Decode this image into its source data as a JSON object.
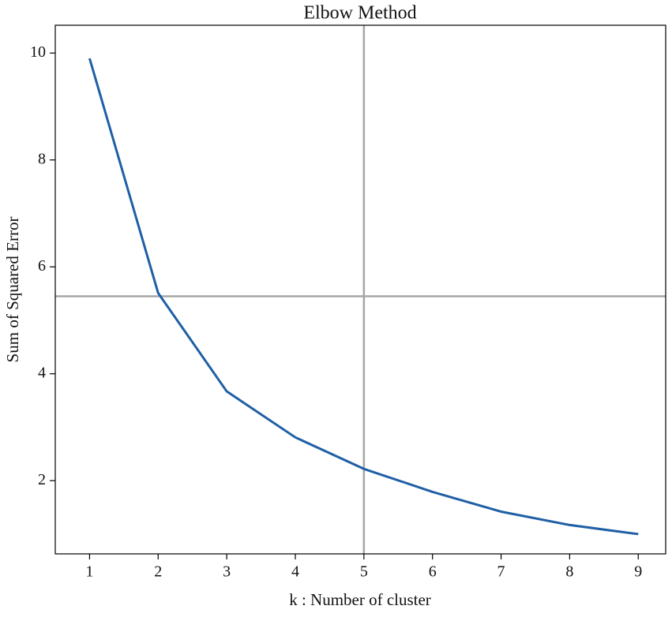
{
  "chart_data": {
    "type": "line",
    "title": "Elbow Method",
    "x_label": "k : Number of cluster",
    "y_label": "Sum of Squared Error",
    "x": [
      1,
      2,
      3,
      4,
      5,
      6,
      7,
      8,
      9
    ],
    "series": [
      {
        "color": "#1f5fa5",
        "values": [
          9.9,
          5.51,
          3.67,
          2.81,
          2.22,
          1.79,
          1.42,
          1.17,
          1.0
        ]
      }
    ],
    "xlim": [
      0.5,
      9.4
    ],
    "ylim": [
      0.63,
      10.52
    ],
    "xticks": [
      1,
      2,
      3,
      4,
      5,
      6,
      7,
      8,
      9
    ],
    "yticks": [
      2,
      4,
      6,
      8,
      10
    ],
    "vline": 5,
    "hline": 5.45,
    "reference_line_color": "#a6a6a6"
  }
}
